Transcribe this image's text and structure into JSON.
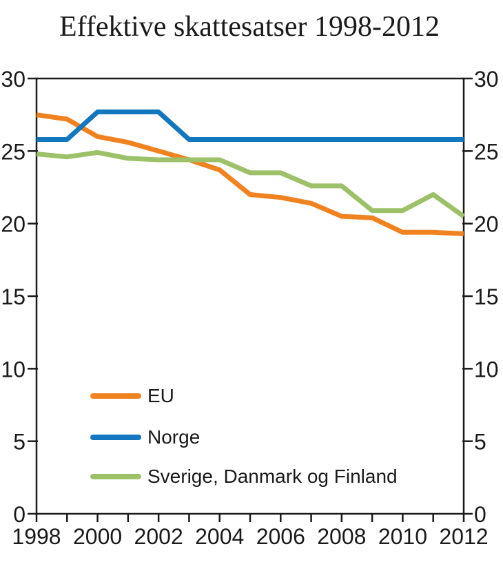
{
  "chart_data": {
    "type": "line",
    "title": "Effektive skattesatser 1998-2012",
    "x": [
      1998,
      1999,
      2000,
      2001,
      2002,
      2003,
      2004,
      2005,
      2006,
      2007,
      2008,
      2009,
      2010,
      2011,
      2012
    ],
    "x_tick_labels": [
      "1998",
      "2000",
      "2002",
      "2004",
      "2006",
      "2008",
      "2010",
      "2012"
    ],
    "y_ticks": [
      0,
      5,
      10,
      15,
      20,
      25,
      30
    ],
    "y_tick_labels": [
      "0",
      "5",
      "10",
      "15",
      "20",
      "25",
      "30"
    ],
    "ylim": [
      0,
      30
    ],
    "grid": false,
    "y_axis_both_sides": true,
    "legend_position": "inside-lower-left",
    "axis_color": "#1a1a1a",
    "background_color": "#ffffff",
    "series": [
      {
        "name": "EU",
        "color": "#F0821F",
        "values": [
          27.5,
          27.2,
          26.0,
          25.6,
          25.0,
          24.4,
          23.7,
          22.0,
          21.8,
          21.4,
          20.5,
          20.4,
          19.4,
          19.4,
          19.3
        ]
      },
      {
        "name": "Norge",
        "color": "#1277BE",
        "values": [
          25.8,
          25.8,
          27.7,
          27.7,
          27.7,
          25.8,
          25.8,
          25.8,
          25.8,
          25.8,
          25.8,
          25.8,
          25.8,
          25.8,
          25.8
        ]
      },
      {
        "name": "Sverige, Danmark og Finland",
        "color": "#9CC168",
        "values": [
          24.8,
          24.6,
          24.9,
          24.5,
          24.4,
          24.4,
          24.4,
          23.5,
          23.5,
          22.6,
          22.6,
          20.9,
          20.9,
          22.0,
          20.5
        ]
      }
    ]
  }
}
